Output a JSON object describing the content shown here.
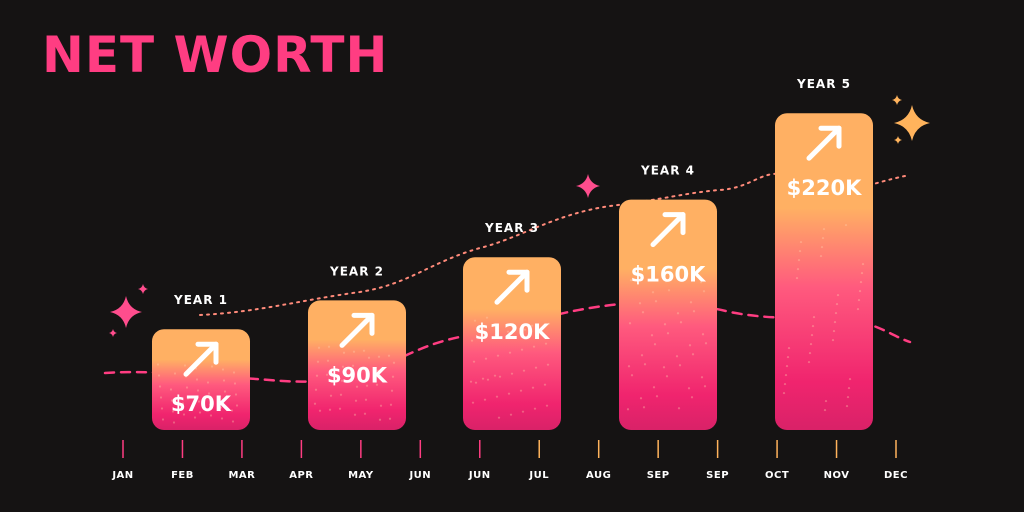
{
  "title": "NET WORTH",
  "colors": {
    "background": "#151313",
    "accent": "#ff3d82",
    "bar_top": "#ffb063",
    "bar_bottom": "#f0246e",
    "sparkle_pink": "#ff4d8d",
    "sparkle_orange": "#ffb35c",
    "dotted_line": "#ff8a7a",
    "dashed_line": "#ffaf52"
  },
  "chart_data": {
    "type": "bar",
    "categories": [
      "YEAR 1",
      "YEAR 2",
      "YEAR 3",
      "YEAR 4",
      "YEAR 5"
    ],
    "values": [
      70,
      90,
      120,
      160,
      220
    ],
    "value_labels": [
      "$70K",
      "$90K",
      "$120K",
      "$160K",
      "$220K"
    ],
    "unit": "K USD",
    "bar_icon": "arrow-up-right-icon",
    "x_axis_labels": [
      "JAN",
      "FEB",
      "MAR",
      "APR",
      "MAY",
      "JUN",
      "JUN",
      "JUL",
      "AUG",
      "SEP",
      "SEP",
      "OCT",
      "NOV",
      "DEC"
    ],
    "grid": false,
    "legend": "none"
  }
}
